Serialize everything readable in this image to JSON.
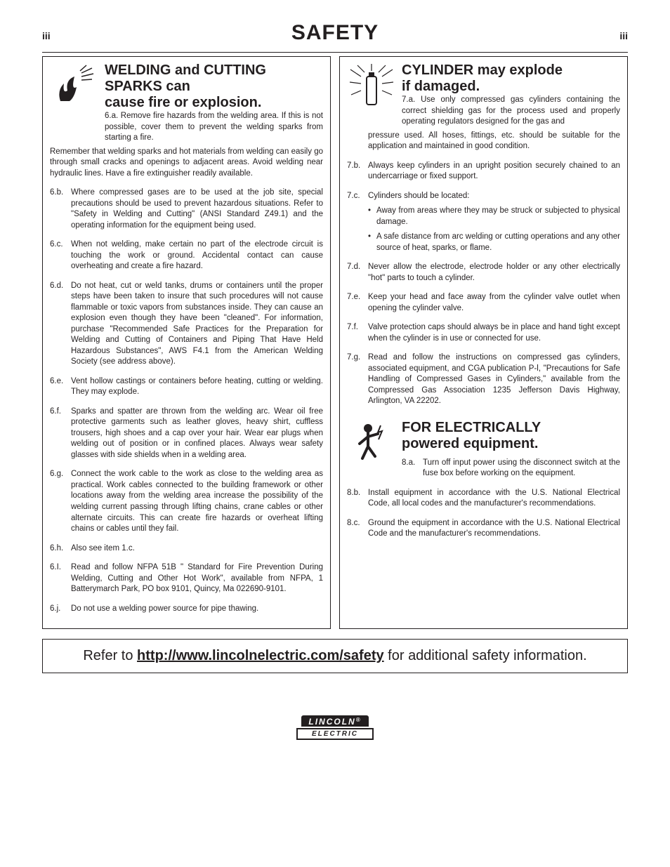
{
  "page": {
    "num_left": "iii",
    "num_right": "iii",
    "title": "SAFETY"
  },
  "left": {
    "title_l1": "WELDING and CUTTING",
    "title_l2": "SPARKS can",
    "title_l3": "cause fire or explosion.",
    "lead_num": "6.a.",
    "lead_text_indented": "Remove fire hazards from the welding area. If this is not possible, cover them to prevent the welding sparks from starting a fire.",
    "lead_text_flow": "Remember that welding sparks and hot materials from welding can easily go through small cracks and openings to adjacent areas. Avoid welding near hydraulic lines. Have a fire extinguisher readily available.",
    "items": [
      {
        "num": "6.b.",
        "txt": "Where compressed gases are to be used at the job site, special precautions should be used to prevent hazardous situations. Refer to \"Safety in Welding and Cutting\" (ANSI Standard Z49.1) and the operating information for the equipment being used."
      },
      {
        "num": "6.c.",
        "txt": "When not welding, make certain no part of the electrode circuit is touching the work or ground. Accidental contact can cause overheating and create a fire hazard."
      },
      {
        "num": "6.d.",
        "txt": "Do not heat, cut or weld tanks, drums or containers until the proper steps have been taken to insure that such procedures will not cause flammable or toxic vapors from substances inside. They can cause an explosion even though they have been \"cleaned\". For information, purchase \"Recommended Safe Practices for the Preparation for Welding and Cutting of Containers and Piping That Have Held Hazardous Substances\", AWS F4.1 from the American Welding Society (see address above)."
      },
      {
        "num": "6.e.",
        "txt": "Vent hollow castings or containers before heating, cutting or welding. They may explode."
      },
      {
        "num": "6.f.",
        "txt": "Sparks and spatter are thrown from the welding arc. Wear oil free protective garments such as leather gloves, heavy shirt, cuffless trousers, high shoes and a cap over your hair. Wear ear plugs when welding out of position or in confined places. Always wear safety glasses with side shields when in a welding area."
      },
      {
        "num": "6.g.",
        "txt": "Connect the work cable to the work as close to the welding area as practical. Work cables connected to the building framework or other locations away from the welding area increase the possibility of the welding current passing through lifting chains, crane cables or other alternate circuits. This can create fire hazards or overheat lifting chains or cables until they fail."
      },
      {
        "num": "6.h.",
        "txt": "Also see item 1.c."
      },
      {
        "num": "6.I.",
        "txt": "Read and follow NFPA 51B \" Standard for Fire Prevention During Welding, Cutting and Other Hot Work\", available from NFPA, 1 Batterymarch Park, PO box 9101, Quincy, Ma 022690-9101."
      },
      {
        "num": "6.j.",
        "txt": "Do not use a welding power source for pipe thawing."
      }
    ]
  },
  "right": {
    "s1": {
      "title_l1": "CYLINDER may explode",
      "title_l2": "if damaged.",
      "lead_num": "7.a.",
      "lead_text_indented": "Use only compressed gas cylinders containing the correct shielding gas for the process used and properly operating regulators designed for the gas and",
      "lead_text_flow": "pressure used. All hoses, fittings, etc. should be suitable for the application and maintained in good condition.",
      "items": [
        {
          "num": "7.b.",
          "txt": "Always keep cylinders in an upright position securely chained to an undercarriage or fixed support."
        },
        {
          "num": "7.c.",
          "txt": "Cylinders should be located:",
          "bullets": [
            "Away from areas where they may be struck or subjected to physical damage.",
            "A safe distance from arc welding or cutting operations and any other source of heat, sparks, or flame."
          ]
        },
        {
          "num": "7.d.",
          "txt": "Never allow the electrode, electrode holder or any other electrically \"hot\" parts to touch a cylinder."
        },
        {
          "num": "7.e.",
          "txt": "Keep your head and face away from the cylinder valve outlet when opening the cylinder valve."
        },
        {
          "num": "7.f.",
          "txt": "Valve protection caps should always be in place and hand tight except when the cylinder is in use or connected for use."
        },
        {
          "num": "7.g.",
          "txt": "Read and follow the instructions on compressed gas cylinders, associated equipment, and CGA publication P-l, \"Precautions for Safe Handling of Compressed Gases in Cylinders,\" available from the Compressed Gas Association 1235 Jefferson Davis Highway, Arlington, VA 22202."
        }
      ]
    },
    "s2": {
      "title_l1": "FOR ELECTRICALLY",
      "title_l2": "powered equipment.",
      "lead_num": "8.a.",
      "lead_text": "Turn off input power using the disconnect switch at the fuse box before working on the equipment.",
      "items": [
        {
          "num": "8.b.",
          "txt": "Install equipment in accordance with the U.S. National Electrical Code, all local codes and the manufacturer's recommendations."
        },
        {
          "num": "8.c.",
          "txt": "Ground the equipment in accordance with the U.S. National Electrical Code and the manufacturer's recommendations."
        }
      ]
    }
  },
  "footer": {
    "pre": "Refer to ",
    "link": "http://www.lincolnelectric.com/safety",
    "post": " for additional safety information."
  },
  "brand": {
    "top": "LINCOLN",
    "reg": "®",
    "bottom": "ELECTRIC"
  }
}
